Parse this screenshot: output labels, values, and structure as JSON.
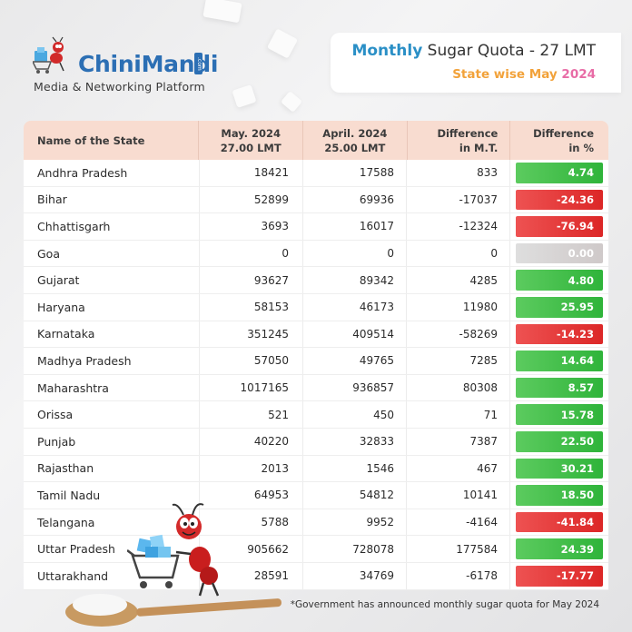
{
  "logo": {
    "name_part1": "Chini",
    "name_part2": "Mandi",
    "com": ".com",
    "tagline": "Media & Networking Platform"
  },
  "title": {
    "accent": "Monthly",
    "main": " Sugar Quota - 27 LMT",
    "sub_prefix": "State wise May ",
    "sub_year": "2024"
  },
  "table": {
    "headers": [
      "Name of the State",
      "May. 2024\n27.00 LMT",
      "April. 2024\n25.00 LMT",
      "Difference\nin M.T.",
      "Difference\nin %"
    ],
    "rows": [
      {
        "state": "Andhra Pradesh",
        "may": "18421",
        "april": "17588",
        "diff": "833",
        "pct": "4.74",
        "sign": "pos"
      },
      {
        "state": "Bihar",
        "may": "52899",
        "april": "69936",
        "diff": "-17037",
        "pct": "-24.36",
        "sign": "neg"
      },
      {
        "state": "Chhattisgarh",
        "may": "3693",
        "april": "16017",
        "diff": "-12324",
        "pct": "-76.94",
        "sign": "neg"
      },
      {
        "state": "Goa",
        "may": "0",
        "april": "0",
        "diff": "0",
        "pct": "0.00",
        "sign": "zero"
      },
      {
        "state": "Gujarat",
        "may": "93627",
        "april": "89342",
        "diff": "4285",
        "pct": "4.80",
        "sign": "pos"
      },
      {
        "state": "Haryana",
        "may": "58153",
        "april": "46173",
        "diff": "11980",
        "pct": "25.95",
        "sign": "pos"
      },
      {
        "state": "Karnataka",
        "may": "351245",
        "april": "409514",
        "diff": "-58269",
        "pct": "-14.23",
        "sign": "neg"
      },
      {
        "state": "Madhya Pradesh",
        "may": "57050",
        "april": "49765",
        "diff": "7285",
        "pct": "14.64",
        "sign": "pos"
      },
      {
        "state": "Maharashtra",
        "may": "1017165",
        "april": "936857",
        "diff": "80308",
        "pct": "8.57",
        "sign": "pos"
      },
      {
        "state": "Orissa",
        "may": "521",
        "april": "450",
        "diff": "71",
        "pct": "15.78",
        "sign": "pos"
      },
      {
        "state": "Punjab",
        "may": "40220",
        "april": "32833",
        "diff": "7387",
        "pct": "22.50",
        "sign": "pos"
      },
      {
        "state": "Rajasthan",
        "may": "2013",
        "april": "1546",
        "diff": "467",
        "pct": "30.21",
        "sign": "pos"
      },
      {
        "state": "Tamil Nadu",
        "may": "64953",
        "april": "54812",
        "diff": "10141",
        "pct": "18.50",
        "sign": "pos"
      },
      {
        "state": "Telangana",
        "may": "5788",
        "april": "9952",
        "diff": "-4164",
        "pct": "-41.84",
        "sign": "neg"
      },
      {
        "state": "Uttar Pradesh",
        "may": "905662",
        "april": "728078",
        "diff": "177584",
        "pct": "24.39",
        "sign": "pos"
      },
      {
        "state": "Uttarakhand",
        "may": "28591",
        "april": "34769",
        "diff": "-6178",
        "pct": "-17.77",
        "sign": "neg"
      }
    ]
  },
  "footnote": "*Government has announced monthly sugar quota for May 2024",
  "colors": {
    "positive": "#2fb43a",
    "negative": "#dc2727",
    "zero": "#d3cccc",
    "header_bg": "#f8dcd0",
    "brand_blue": "#2c6fb4",
    "subtitle_orange": "#f2a23a",
    "subtitle_pink": "#e86ca6"
  }
}
